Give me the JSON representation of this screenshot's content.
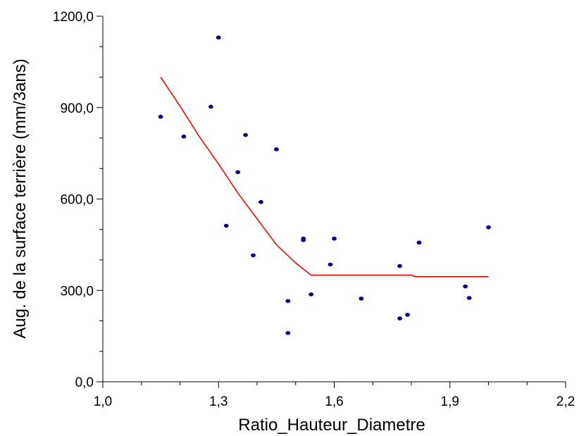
{
  "chart_data": {
    "type": "scatter",
    "xlabel": "Ratio_Hauteur_Diametre",
    "ylabel": "Aug. de la surface terrière (mm/3ans)",
    "xlim": [
      1.0,
      2.2
    ],
    "ylim": [
      0,
      1200
    ],
    "x_ticks": [
      1.0,
      1.3,
      1.6,
      1.9,
      2.2
    ],
    "x_tick_labels": [
      "1,0",
      "1,3",
      "1,6",
      "1,9",
      "2,2"
    ],
    "y_ticks": [
      0,
      300,
      600,
      900,
      1200
    ],
    "y_tick_labels": [
      "0,0",
      "300,0",
      "600,0",
      "900,0",
      "1200,0"
    ],
    "grid": false,
    "colors": {
      "points": "#00008b",
      "fit_line": "#ff0000",
      "axes": "#000000"
    },
    "series": [
      {
        "kind": "scatter",
        "points": [
          [
            1.15,
            870
          ],
          [
            1.21,
            805
          ],
          [
            1.28,
            903
          ],
          [
            1.3,
            1130
          ],
          [
            1.32,
            512
          ],
          [
            1.35,
            688
          ],
          [
            1.37,
            810
          ],
          [
            1.39,
            415
          ],
          [
            1.41,
            590
          ],
          [
            1.45,
            763
          ],
          [
            1.48,
            265
          ],
          [
            1.48,
            160
          ],
          [
            1.52,
            465
          ],
          [
            1.52,
            470
          ],
          [
            1.54,
            287
          ],
          [
            1.59,
            385
          ],
          [
            1.6,
            470
          ],
          [
            1.67,
            273
          ],
          [
            1.77,
            380
          ],
          [
            1.77,
            208
          ],
          [
            1.79,
            220
          ],
          [
            1.82,
            457
          ],
          [
            1.94,
            313
          ],
          [
            1.95,
            275
          ],
          [
            2.0,
            507
          ]
        ]
      },
      {
        "kind": "line",
        "points": [
          [
            1.15,
            1000
          ],
          [
            1.2,
            905
          ],
          [
            1.25,
            805
          ],
          [
            1.3,
            715
          ],
          [
            1.35,
            620
          ],
          [
            1.4,
            535
          ],
          [
            1.45,
            450
          ],
          [
            1.5,
            390
          ],
          [
            1.54,
            350
          ],
          [
            1.6,
            350
          ],
          [
            1.7,
            350
          ],
          [
            1.8,
            350
          ],
          [
            1.81,
            345
          ],
          [
            1.9,
            345
          ],
          [
            2.0,
            345
          ]
        ]
      }
    ]
  }
}
